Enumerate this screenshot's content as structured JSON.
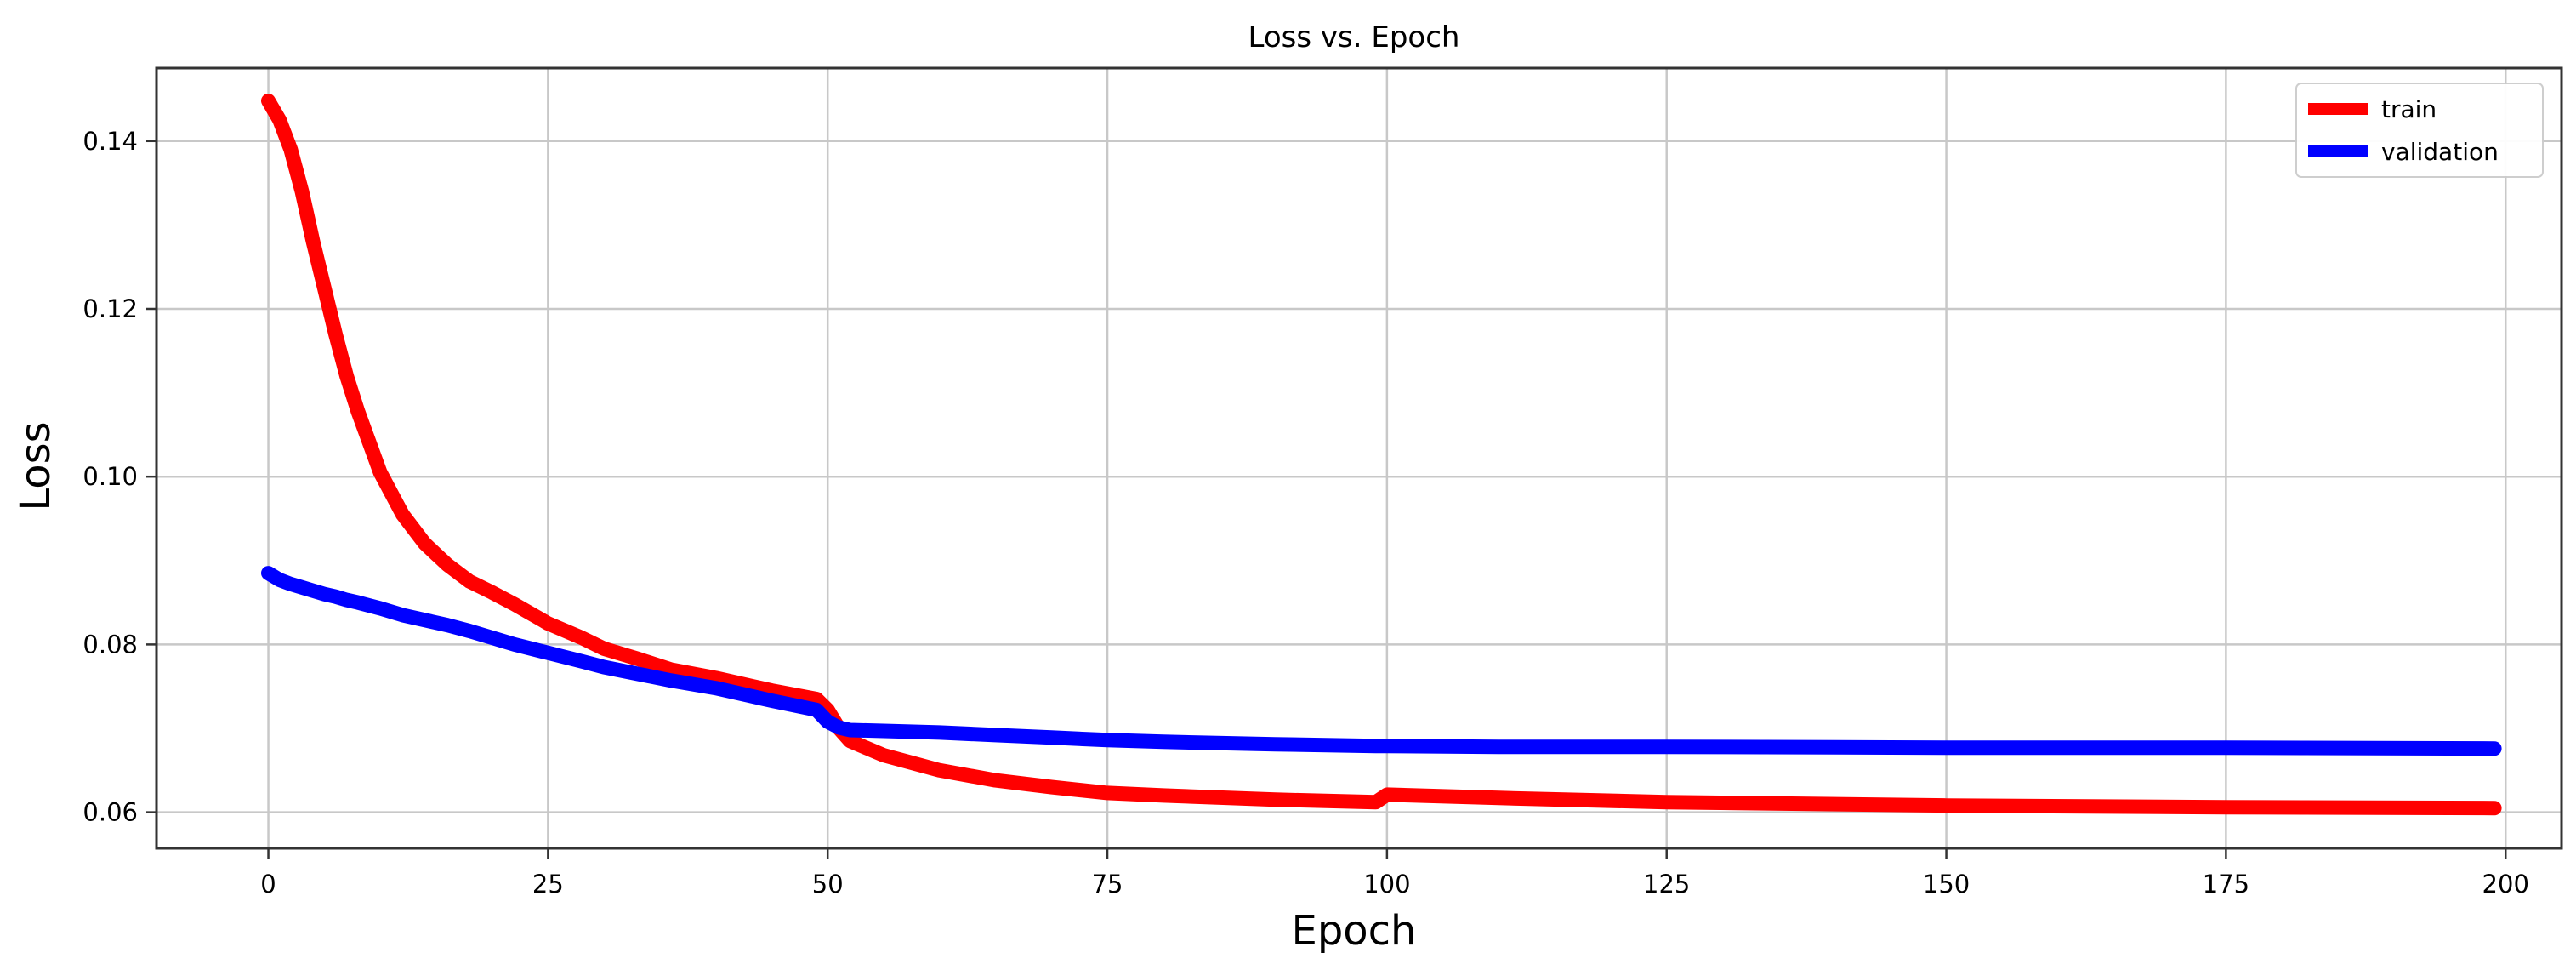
{
  "chart_data": {
    "type": "line",
    "title": "Loss vs. Epoch",
    "xlabel": "Epoch",
    "ylabel": "Loss",
    "xlim": [
      -10,
      205
    ],
    "ylim": [
      0.0557,
      0.1487
    ],
    "xticks": [
      0,
      25,
      50,
      75,
      100,
      125,
      150,
      175,
      200
    ],
    "yticks": [
      0.06,
      0.08,
      0.1,
      0.12,
      0.14
    ],
    "ytick_labels": [
      "0.06",
      "0.08",
      "0.10",
      "0.12",
      "0.14"
    ],
    "grid": true,
    "legend_position": "top-right",
    "x": [
      0,
      1,
      2,
      3,
      4,
      5,
      6,
      7,
      8,
      10,
      12,
      14,
      16,
      18,
      20,
      22,
      25,
      28,
      30,
      33,
      36,
      40,
      45,
      49,
      50,
      51,
      52,
      55,
      60,
      65,
      70,
      75,
      80,
      90,
      99,
      100,
      110,
      125,
      150,
      175,
      199
    ],
    "series": [
      {
        "name": "train",
        "color": "#ff0000",
        "values": [
          0.1448,
          0.1425,
          0.139,
          0.134,
          0.128,
          0.1225,
          0.117,
          0.112,
          0.1078,
          0.1005,
          0.0955,
          0.092,
          0.0895,
          0.0875,
          0.0862,
          0.0848,
          0.0825,
          0.0808,
          0.0795,
          0.0783,
          0.077,
          0.076,
          0.0745,
          0.0735,
          0.0722,
          0.07,
          0.0685,
          0.0668,
          0.065,
          0.0638,
          0.063,
          0.0623,
          0.062,
          0.0615,
          0.0612,
          0.0621,
          0.0617,
          0.0612,
          0.0608,
          0.0606,
          0.0605
        ]
      },
      {
        "name": "validation",
        "color": "#0000ff",
        "values": [
          0.0885,
          0.0877,
          0.0872,
          0.0868,
          0.0864,
          0.086,
          0.0857,
          0.0853,
          0.085,
          0.0843,
          0.0835,
          0.0829,
          0.0823,
          0.0816,
          0.0808,
          0.08,
          0.079,
          0.078,
          0.0773,
          0.0765,
          0.0757,
          0.0748,
          0.0733,
          0.0722,
          0.0708,
          0.0701,
          0.0698,
          0.0697,
          0.0695,
          0.0692,
          0.0689,
          0.0686,
          0.0684,
          0.0681,
          0.0679,
          0.0679,
          0.0678,
          0.0678,
          0.0677,
          0.0677,
          0.0676
        ]
      }
    ]
  }
}
